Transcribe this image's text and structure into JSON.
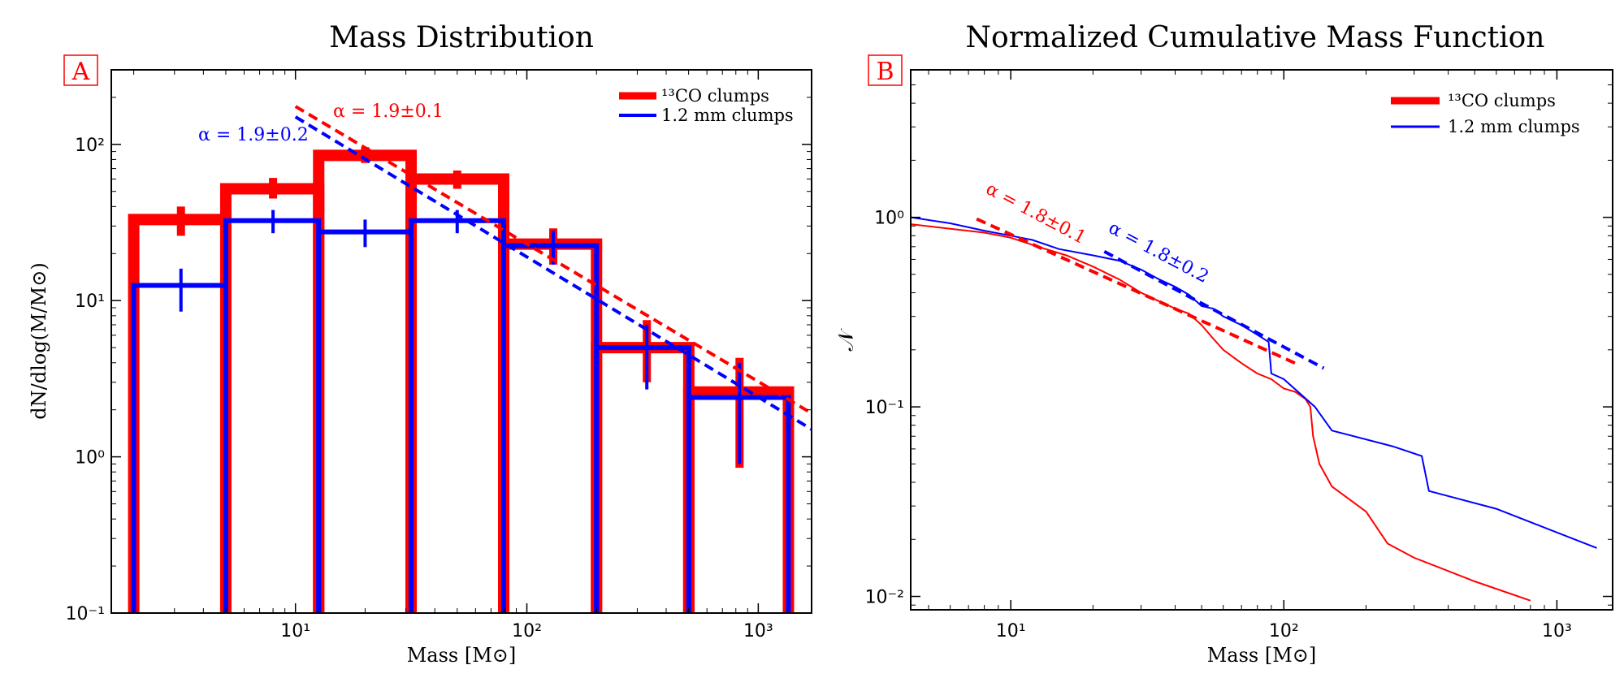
{
  "colors": {
    "red": "#ff0000",
    "blue": "#0000ff",
    "axes": "#000000",
    "background": "#ffffff"
  },
  "panel_a": {
    "label": "A",
    "title": "Mass Distribution",
    "xlabel": "Mass [M⊙]",
    "ylabel": "dN/dlog(M/M⊙)",
    "x_ticks": [
      {
        "value": 10,
        "label": "10¹"
      },
      {
        "value": 100,
        "label": "10²"
      },
      {
        "value": 1000,
        "label": "10³"
      }
    ],
    "y_ticks": [
      {
        "value": 0.1,
        "label": "10⁻¹"
      },
      {
        "value": 1,
        "label": "10⁰"
      },
      {
        "value": 10,
        "label": "10¹"
      },
      {
        "value": 100,
        "label": "10²"
      }
    ],
    "legend": [
      {
        "label": "¹³CO clumps",
        "color": "#ff0000",
        "style": "thick"
      },
      {
        "label": "1.2 mm clumps",
        "color": "#0000ff",
        "style": "thin"
      }
    ],
    "fit_annotations": [
      {
        "text": "α = 1.9±0.1",
        "color": "#ff0000"
      },
      {
        "text": "α = 1.9±0.2",
        "color": "#0000ff"
      }
    ]
  },
  "panel_b": {
    "label": "B",
    "title": "Normalized Cumulative Mass Function",
    "xlabel": "Mass [M⊙]",
    "ylabel": "𝒩",
    "x_ticks": [
      {
        "value": 10,
        "label": "10¹"
      },
      {
        "value": 100,
        "label": "10²"
      },
      {
        "value": 1000,
        "label": "10³"
      }
    ],
    "y_ticks": [
      {
        "value": 0.01,
        "label": "10⁻²"
      },
      {
        "value": 0.1,
        "label": "10⁻¹"
      },
      {
        "value": 1,
        "label": "10⁰"
      }
    ],
    "legend": [
      {
        "label": "¹³CO clumps",
        "color": "#ff0000",
        "style": "thick"
      },
      {
        "label": "1.2 mm clumps",
        "color": "#0000ff",
        "style": "thin"
      }
    ],
    "fit_annotations": [
      {
        "text": "α = 1.8±0.1",
        "color": "#ff0000"
      },
      {
        "text": "α = 1.8±0.2",
        "color": "#0000ff"
      }
    ]
  },
  "chart_data": [
    {
      "type": "histogram",
      "title": "Mass Distribution",
      "xlabel": "Mass [M⊙]",
      "ylabel": "dN/dlog(M/M⊙)",
      "xscale": "log",
      "yscale": "log",
      "xlim": [
        1.6,
        1700
      ],
      "ylim": [
        0.1,
        300
      ],
      "grid": false,
      "legend_position": "top-right",
      "bin_edges": [
        2.0,
        5.0,
        12.6,
        31.6,
        79.4,
        200,
        501,
        1350
      ],
      "series": [
        {
          "name": "¹³CO clumps",
          "color": "#ff0000",
          "values": [
            33,
            52,
            85,
            60,
            23,
            5,
            2.6
          ],
          "error_center": [
            3.2,
            8,
            20,
            50,
            130,
            330,
            830
          ],
          "error_low": [
            26,
            45,
            76,
            52,
            17,
            3,
            0.85
          ],
          "error_high": [
            40,
            61,
            96,
            68,
            29,
            7.5,
            4.3
          ]
        },
        {
          "name": "1.2 mm clumps",
          "color": "#0000ff",
          "values": [
            12.5,
            32.5,
            27.5,
            32.5,
            22.5,
            5,
            2.4
          ],
          "error_center": [
            3.2,
            8,
            20,
            50,
            130,
            330,
            830
          ],
          "error_low": [
            8.5,
            27,
            22,
            27,
            17,
            2.7,
            0.9
          ],
          "error_high": [
            16,
            38,
            33,
            38,
            28,
            7,
            4
          ]
        }
      ],
      "fits": [
        {
          "series": "¹³CO clumps",
          "label": "α = 1.9±0.1",
          "x": [
            10,
            1700
          ],
          "y": [
            175,
            1.9
          ]
        },
        {
          "series": "1.2 mm clumps",
          "label": "α = 1.9±0.2",
          "x": [
            10,
            1700
          ],
          "y": [
            150,
            1.5
          ]
        }
      ]
    },
    {
      "type": "line",
      "title": "Normalized Cumulative Mass Function",
      "xlabel": "Mass [M⊙]",
      "ylabel": "𝒩",
      "xscale": "log",
      "yscale": "log",
      "xlim": [
        4.3,
        1600
      ],
      "ylim": [
        0.0085,
        6
      ],
      "grid": false,
      "legend_position": "top-right",
      "series": [
        {
          "name": "¹³CO clumps",
          "color": "#ff0000",
          "x": [
            4.3,
            6,
            8,
            10,
            13,
            16,
            20,
            25,
            30,
            35,
            40,
            45,
            50,
            55,
            60,
            70,
            80,
            90,
            100,
            110,
            120,
            125,
            128,
            135,
            150,
            200,
            240,
            300,
            500,
            800
          ],
          "y": [
            0.92,
            0.87,
            0.83,
            0.78,
            0.69,
            0.63,
            0.55,
            0.47,
            0.4,
            0.36,
            0.33,
            0.31,
            0.27,
            0.23,
            0.2,
            0.17,
            0.15,
            0.14,
            0.125,
            0.12,
            0.11,
            0.1,
            0.07,
            0.05,
            0.038,
            0.028,
            0.019,
            0.016,
            0.012,
            0.0095
          ]
        },
        {
          "name": "1.2 mm clumps",
          "color": "#0000ff",
          "x": [
            4.3,
            6,
            8,
            10,
            12,
            15,
            20,
            25,
            30,
            35,
            40,
            45,
            50,
            55,
            60,
            70,
            80,
            88,
            90,
            100,
            130,
            150,
            250,
            320,
            340,
            600,
            1400
          ],
          "y": [
            1.0,
            0.93,
            0.85,
            0.8,
            0.76,
            0.68,
            0.63,
            0.59,
            0.53,
            0.47,
            0.43,
            0.39,
            0.34,
            0.33,
            0.3,
            0.27,
            0.24,
            0.22,
            0.15,
            0.14,
            0.1,
            0.075,
            0.062,
            0.055,
            0.036,
            0.029,
            0.018
          ]
        }
      ],
      "fits": [
        {
          "series": "¹³CO clumps",
          "label": "α = 1.8±0.1",
          "x": [
            7.5,
            110
          ],
          "y": [
            0.98,
            0.17
          ]
        },
        {
          "series": "1.2 mm clumps",
          "label": "α = 1.8±0.2",
          "x": [
            22,
            140
          ],
          "y": [
            0.66,
            0.16
          ]
        }
      ]
    }
  ]
}
